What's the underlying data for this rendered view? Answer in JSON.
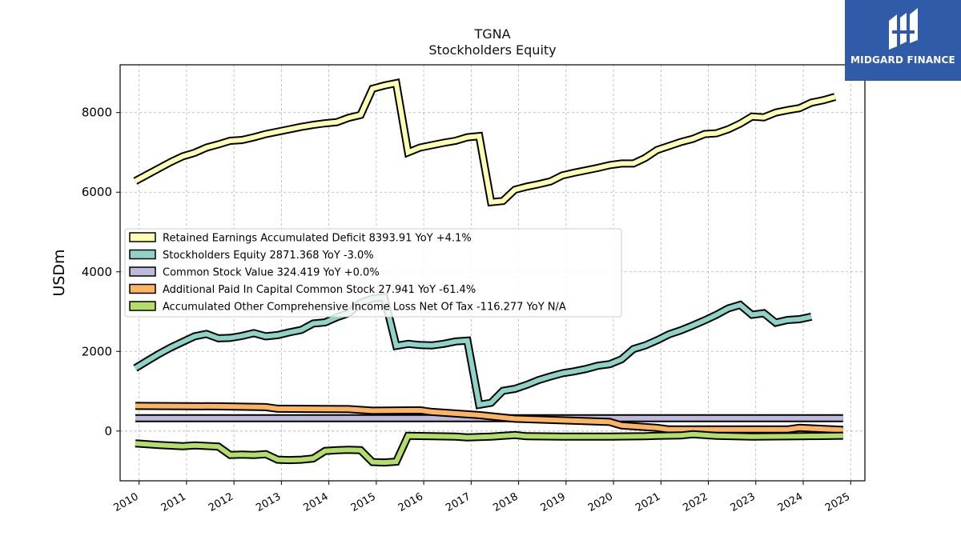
{
  "title_line1": "TGNA",
  "title_line2": "Stockholders  Equity",
  "brand": {
    "name": "MIDGARD FINANCE",
    "color": "#2f5ba8",
    "icon": "midgard-logo-icon"
  },
  "chart_data": {
    "type": "line",
    "ylabel": "USDm",
    "xlabel": "",
    "xlim": [
      2009.6,
      2025.3
    ],
    "ylim": [
      -1250,
      9200
    ],
    "grid": true,
    "legend_position": "center-left",
    "x_ticks": [
      "2010",
      "2011",
      "2012",
      "2013",
      "2014",
      "2015",
      "2016",
      "2017",
      "2018",
      "2019",
      "2020",
      "2021",
      "2022",
      "2023",
      "2024",
      "2025"
    ],
    "y_ticks": [
      "0",
      "2000",
      "4000",
      "6000",
      "8000"
    ],
    "y_tick_values": [
      0,
      2000,
      4000,
      6000,
      8000
    ],
    "series": [
      {
        "name": "Retained Earnings Accumulated Deficit",
        "legend": "Retained Earnings Accumulated Deficit  8393.91 YoY +4.1%",
        "color": "#ffffb3",
        "points": [
          [
            2009.92,
            6280
          ],
          [
            2010.17,
            6440
          ],
          [
            2010.42,
            6600
          ],
          [
            2010.67,
            6760
          ],
          [
            2010.92,
            6900
          ],
          [
            2011.17,
            6990
          ],
          [
            2011.42,
            7120
          ],
          [
            2011.67,
            7200
          ],
          [
            2011.92,
            7290
          ],
          [
            2012.17,
            7310
          ],
          [
            2012.42,
            7380
          ],
          [
            2012.67,
            7460
          ],
          [
            2012.92,
            7520
          ],
          [
            2013.17,
            7580
          ],
          [
            2013.42,
            7640
          ],
          [
            2013.67,
            7690
          ],
          [
            2013.92,
            7730
          ],
          [
            2014.17,
            7760
          ],
          [
            2014.42,
            7870
          ],
          [
            2014.67,
            7940
          ],
          [
            2014.92,
            8600
          ],
          [
            2015.17,
            8680
          ],
          [
            2015.42,
            8740
          ],
          [
            2015.67,
            7000
          ],
          [
            2015.92,
            7120
          ],
          [
            2016.17,
            7180
          ],
          [
            2016.42,
            7240
          ],
          [
            2016.67,
            7290
          ],
          [
            2016.92,
            7380
          ],
          [
            2017.17,
            7410
          ],
          [
            2017.42,
            5750
          ],
          [
            2017.67,
            5780
          ],
          [
            2017.92,
            6060
          ],
          [
            2018.17,
            6140
          ],
          [
            2018.42,
            6200
          ],
          [
            2018.67,
            6270
          ],
          [
            2018.92,
            6420
          ],
          [
            2019.17,
            6490
          ],
          [
            2019.42,
            6550
          ],
          [
            2019.67,
            6610
          ],
          [
            2019.92,
            6680
          ],
          [
            2020.17,
            6720
          ],
          [
            2020.42,
            6720
          ],
          [
            2020.67,
            6860
          ],
          [
            2020.92,
            7060
          ],
          [
            2021.17,
            7160
          ],
          [
            2021.42,
            7260
          ],
          [
            2021.67,
            7340
          ],
          [
            2021.92,
            7460
          ],
          [
            2022.17,
            7480
          ],
          [
            2022.42,
            7580
          ],
          [
            2022.67,
            7720
          ],
          [
            2022.92,
            7900
          ],
          [
            2023.17,
            7880
          ],
          [
            2023.42,
            8000
          ],
          [
            2023.67,
            8060
          ],
          [
            2023.92,
            8110
          ],
          [
            2024.17,
            8250
          ],
          [
            2024.42,
            8310
          ],
          [
            2024.67,
            8394
          ]
        ]
      },
      {
        "name": "Stockholders Equity",
        "legend": "Stockholders Equity  2871.368 YoY -3.0%",
        "color": "#8dd3c7",
        "points": [
          [
            2009.92,
            1580
          ],
          [
            2010.17,
            1760
          ],
          [
            2010.42,
            1940
          ],
          [
            2010.67,
            2100
          ],
          [
            2010.92,
            2240
          ],
          [
            2011.17,
            2380
          ],
          [
            2011.42,
            2440
          ],
          [
            2011.67,
            2330
          ],
          [
            2011.92,
            2340
          ],
          [
            2012.17,
            2390
          ],
          [
            2012.42,
            2460
          ],
          [
            2012.67,
            2380
          ],
          [
            2012.92,
            2410
          ],
          [
            2013.17,
            2480
          ],
          [
            2013.42,
            2540
          ],
          [
            2013.67,
            2700
          ],
          [
            2013.92,
            2730
          ],
          [
            2014.17,
            2860
          ],
          [
            2014.42,
            2960
          ],
          [
            2014.67,
            3220
          ],
          [
            2014.92,
            3330
          ],
          [
            2015.17,
            3360
          ],
          [
            2015.42,
            2140
          ],
          [
            2015.67,
            2190
          ],
          [
            2015.92,
            2160
          ],
          [
            2016.17,
            2150
          ],
          [
            2016.42,
            2190
          ],
          [
            2016.67,
            2250
          ],
          [
            2016.92,
            2270
          ],
          [
            2017.17,
            660
          ],
          [
            2017.42,
            710
          ],
          [
            2017.67,
            1010
          ],
          [
            2017.92,
            1060
          ],
          [
            2018.17,
            1160
          ],
          [
            2018.42,
            1280
          ],
          [
            2018.67,
            1370
          ],
          [
            2018.92,
            1450
          ],
          [
            2019.17,
            1500
          ],
          [
            2019.42,
            1560
          ],
          [
            2019.67,
            1640
          ],
          [
            2019.92,
            1680
          ],
          [
            2020.17,
            1800
          ],
          [
            2020.42,
            2060
          ],
          [
            2020.67,
            2150
          ],
          [
            2020.92,
            2280
          ],
          [
            2021.17,
            2430
          ],
          [
            2021.42,
            2530
          ],
          [
            2021.67,
            2650
          ],
          [
            2021.92,
            2780
          ],
          [
            2022.17,
            2920
          ],
          [
            2022.42,
            3080
          ],
          [
            2022.67,
            3170
          ],
          [
            2022.92,
            2920
          ],
          [
            2023.17,
            2960
          ],
          [
            2023.42,
            2720
          ],
          [
            2023.67,
            2790
          ],
          [
            2023.92,
            2810
          ],
          [
            2024.17,
            2871
          ]
        ]
      },
      {
        "name": "Common Stock Value",
        "legend": "Common Stock Value  324.419 YoY +0.0%",
        "color": "#bebada",
        "points": [
          [
            2009.92,
            324
          ],
          [
            2024.84,
            324
          ]
        ]
      },
      {
        "name": "Additional Paid In Capital Common Stock",
        "legend": "Additional Paid In Capital Common Stock  27.941 YoY -61.4%",
        "color": "#fdb462",
        "points": [
          [
            2009.92,
            630
          ],
          [
            2011.67,
            620
          ],
          [
            2012.67,
            600
          ],
          [
            2012.92,
            560
          ],
          [
            2014.42,
            550
          ],
          [
            2014.92,
            510
          ],
          [
            2015.92,
            520
          ],
          [
            2016.17,
            480
          ],
          [
            2017.17,
            400
          ],
          [
            2017.92,
            310
          ],
          [
            2018.92,
            270
          ],
          [
            2019.92,
            230
          ],
          [
            2020.17,
            140
          ],
          [
            2020.92,
            80
          ],
          [
            2021.17,
            40
          ],
          [
            2023.67,
            40
          ],
          [
            2023.92,
            80
          ],
          [
            2024.84,
            28
          ]
        ]
      },
      {
        "name": "Accumulated Other Comprehensive Income Loss Net Of Tax",
        "legend": "Accumulated Other Comprehensive Income Loss Net Of Tax  -116.277 YoY N/A",
        "color": "#b3de69",
        "points": [
          [
            2009.92,
            -310
          ],
          [
            2010.42,
            -350
          ],
          [
            2010.92,
            -380
          ],
          [
            2011.17,
            -360
          ],
          [
            2011.67,
            -390
          ],
          [
            2011.92,
            -600
          ],
          [
            2012.17,
            -590
          ],
          [
            2012.42,
            -600
          ],
          [
            2012.67,
            -580
          ],
          [
            2012.92,
            -720
          ],
          [
            2013.17,
            -730
          ],
          [
            2013.42,
            -720
          ],
          [
            2013.67,
            -690
          ],
          [
            2013.92,
            -500
          ],
          [
            2014.17,
            -480
          ],
          [
            2014.42,
            -470
          ],
          [
            2014.67,
            -480
          ],
          [
            2014.92,
            -780
          ],
          [
            2015.17,
            -790
          ],
          [
            2015.42,
            -770
          ],
          [
            2015.67,
            -120
          ],
          [
            2016.17,
            -130
          ],
          [
            2016.67,
            -140
          ],
          [
            2016.92,
            -160
          ],
          [
            2017.42,
            -140
          ],
          [
            2017.92,
            -100
          ],
          [
            2018.17,
            -130
          ],
          [
            2018.92,
            -140
          ],
          [
            2019.92,
            -140
          ],
          [
            2020.67,
            -130
          ],
          [
            2020.92,
            -120
          ],
          [
            2021.42,
            -110
          ],
          [
            2021.67,
            -80
          ],
          [
            2021.92,
            -100
          ],
          [
            2022.17,
            -120
          ],
          [
            2022.92,
            -140
          ],
          [
            2023.92,
            -130
          ],
          [
            2024.84,
            -116
          ]
        ]
      }
    ]
  }
}
